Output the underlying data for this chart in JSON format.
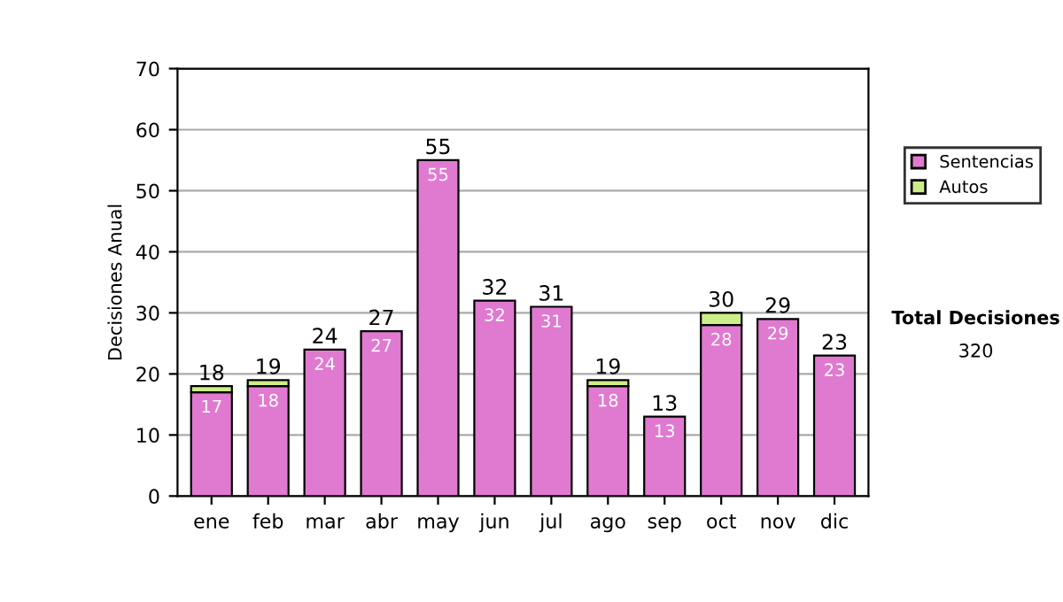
{
  "chart_data": {
    "type": "bar",
    "stacked": true,
    "ylabel": "Decisiones Anual",
    "categories": [
      "ene",
      "feb",
      "mar",
      "abr",
      "may",
      "jun",
      "jul",
      "ago",
      "sep",
      "oct",
      "nov",
      "dic"
    ],
    "series": [
      {
        "name": "Sentencias",
        "color": "#e07ad0",
        "values": [
          17,
          18,
          24,
          27,
          55,
          32,
          31,
          18,
          13,
          28,
          29,
          23
        ],
        "value_labels": [
          "17",
          "18",
          "24",
          "27",
          "55",
          "32",
          "31",
          "18",
          "13",
          "28",
          "29",
          "23"
        ]
      },
      {
        "name": "Autos",
        "color": "#ccee88",
        "values": [
          1,
          1,
          null,
          null,
          null,
          null,
          null,
          1,
          null,
          2,
          null,
          null
        ]
      }
    ],
    "totals": [
      "18",
      "19",
      "24",
      "27",
      "55",
      "32",
      "31",
      "19",
      "13",
      "30",
      "29",
      "23"
    ],
    "ylim": [
      0,
      70
    ],
    "yticks": [
      0,
      10,
      20,
      30,
      40,
      50,
      60,
      70
    ],
    "grid": "y",
    "legend": "right",
    "annotations": [
      "Total Decisiones",
      "320"
    ]
  }
}
